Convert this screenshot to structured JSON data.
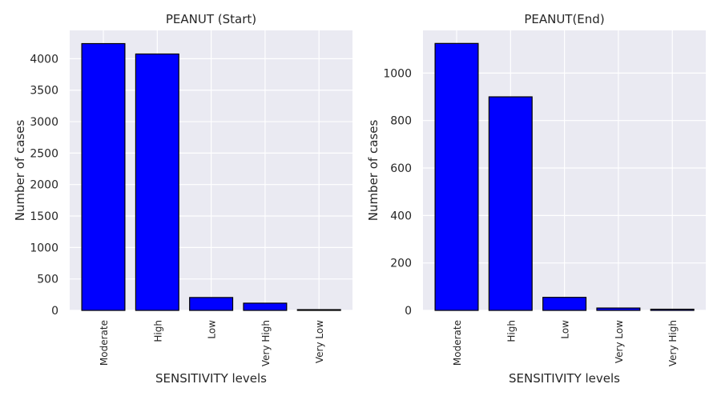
{
  "chart_data": [
    {
      "type": "bar",
      "title": "PEANUT (Start)",
      "xlabel": "SENSITIVITY levels",
      "ylabel": "Number of cases",
      "categories": [
        "Moderate",
        "High",
        "Low",
        "Very High",
        "Very Low"
      ],
      "values": [
        4240,
        4075,
        205,
        115,
        12
      ],
      "ylim": [
        0,
        4450
      ],
      "yticks": [
        0,
        500,
        1000,
        1500,
        2000,
        2500,
        3000,
        3500,
        4000
      ],
      "grid": true
    },
    {
      "type": "bar",
      "title": "PEANUT(End)",
      "xlabel": "SENSITIVITY levels",
      "ylabel": "Number of cases",
      "categories": [
        "Moderate",
        "High",
        "Low",
        "Very Low",
        "Very High"
      ],
      "values": [
        1125,
        900,
        55,
        10,
        5
      ],
      "ylim": [
        0,
        1180
      ],
      "yticks": [
        0,
        200,
        400,
        600,
        800,
        1000
      ],
      "grid": true
    }
  ],
  "style": {
    "bar_color": "#0000ff",
    "bar_edge": "#000000",
    "axes_bg": "#eaeaf2",
    "grid_color": "#ffffff",
    "text_color": "#262626"
  }
}
